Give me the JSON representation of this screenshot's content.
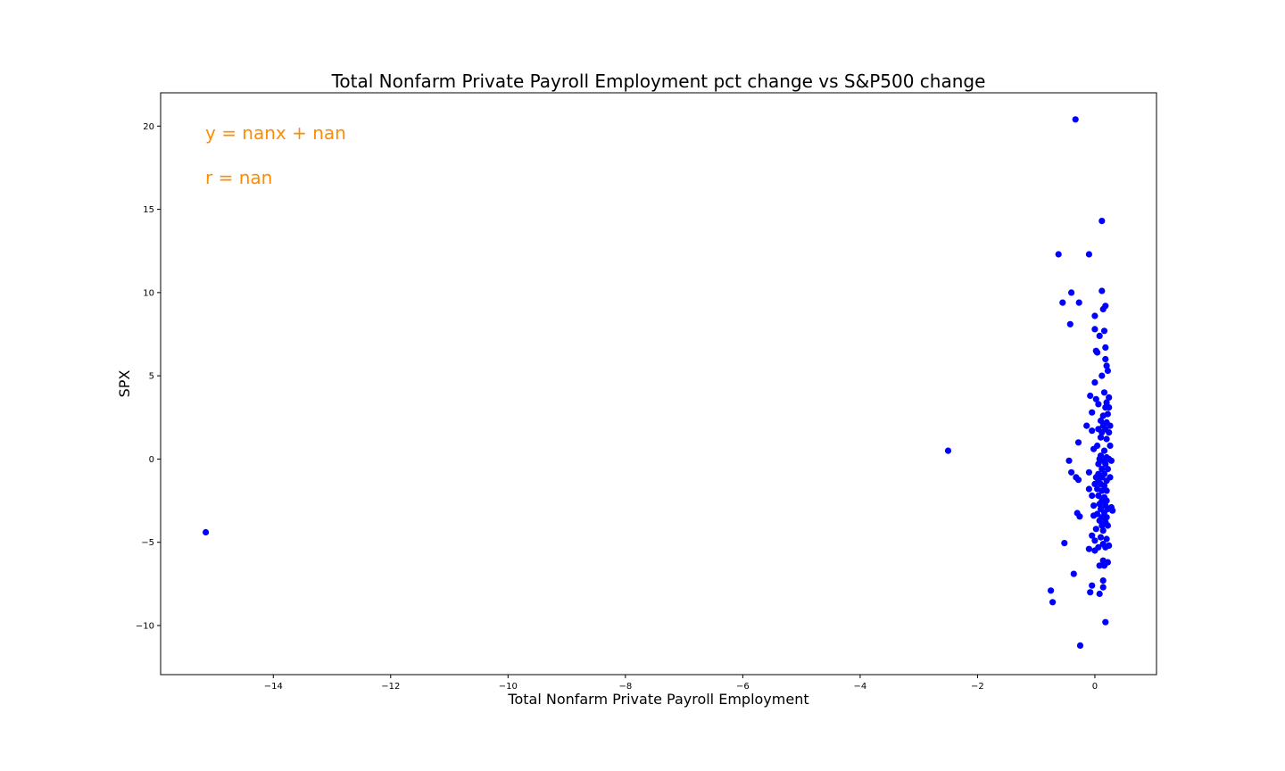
{
  "chart_data": {
    "type": "scatter",
    "title": "Total Nonfarm Private Payroll Employment pct change vs S&P500 change",
    "xlabel": "Total Nonfarm Private Payroll Employment",
    "ylabel": "SPX",
    "xlim": [
      -15.92,
      1.05
    ],
    "ylim": [
      -12.95,
      22
    ],
    "x_ticks": [
      -14,
      -12,
      -10,
      -8,
      -6,
      -4,
      -2,
      0
    ],
    "x_tick_labels": [
      "−14",
      "−12",
      "−10",
      "−8",
      "−6",
      "−4",
      "−2",
      "0"
    ],
    "y_ticks": [
      -10,
      -5,
      0,
      5,
      10,
      15,
      20
    ],
    "y_tick_labels": [
      "−10",
      "−5",
      "0",
      "5",
      "10",
      "15",
      "20"
    ],
    "grid": false,
    "marker_color": "#0000ff",
    "annotation_color": "#ff8c00",
    "annotations": [
      {
        "text": "y = nanx + nan",
        "position": "top-left"
      },
      {
        "text": "r = nan",
        "position": "top-left"
      }
    ],
    "points": [
      {
        "x": -15.15,
        "y": -4.4
      },
      {
        "x": -2.5,
        "y": 0.5
      },
      {
        "x": -0.33,
        "y": 20.4
      },
      {
        "x": 0.12,
        "y": 14.3
      },
      {
        "x": -0.62,
        "y": 12.3
      },
      {
        "x": -0.1,
        "y": 12.3
      },
      {
        "x": 0.12,
        "y": 10.1
      },
      {
        "x": -0.4,
        "y": 10.0
      },
      {
        "x": -0.55,
        "y": 9.4
      },
      {
        "x": -0.27,
        "y": 9.4
      },
      {
        "x": 0.18,
        "y": 9.2
      },
      {
        "x": 0.14,
        "y": 9.0
      },
      {
        "x": 0.0,
        "y": 8.6
      },
      {
        "x": -0.42,
        "y": 8.1
      },
      {
        "x": 0.0,
        "y": 7.8
      },
      {
        "x": 0.16,
        "y": 7.7
      },
      {
        "x": 0.08,
        "y": 7.4
      },
      {
        "x": 0.18,
        "y": 6.7
      },
      {
        "x": 0.02,
        "y": 6.5
      },
      {
        "x": 0.04,
        "y": 6.4
      },
      {
        "x": 0.18,
        "y": 6.0
      },
      {
        "x": 0.2,
        "y": 5.6
      },
      {
        "x": 0.22,
        "y": 5.3
      },
      {
        "x": 0.12,
        "y": 5.0
      },
      {
        "x": 0.0,
        "y": 4.6
      },
      {
        "x": 0.16,
        "y": 4.0
      },
      {
        "x": -0.08,
        "y": 3.8
      },
      {
        "x": 0.24,
        "y": 3.7
      },
      {
        "x": 0.02,
        "y": 3.6
      },
      {
        "x": 0.2,
        "y": 3.4
      },
      {
        "x": 0.06,
        "y": 3.3
      },
      {
        "x": 0.18,
        "y": 3.1
      },
      {
        "x": 0.24,
        "y": 3.1
      },
      {
        "x": -0.05,
        "y": 2.8
      },
      {
        "x": 0.14,
        "y": 2.6
      },
      {
        "x": 0.22,
        "y": 2.7
      },
      {
        "x": 0.1,
        "y": 2.3
      },
      {
        "x": 0.2,
        "y": 2.2
      },
      {
        "x": -0.14,
        "y": 2.0
      },
      {
        "x": 0.14,
        "y": 2.0
      },
      {
        "x": 0.26,
        "y": 2.0
      },
      {
        "x": 0.06,
        "y": 1.8
      },
      {
        "x": 0.18,
        "y": 1.8
      },
      {
        "x": -0.05,
        "y": 1.7
      },
      {
        "x": 0.12,
        "y": 1.6
      },
      {
        "x": 0.24,
        "y": 1.6
      },
      {
        "x": 0.1,
        "y": 1.3
      },
      {
        "x": 0.2,
        "y": 1.2
      },
      {
        "x": -0.28,
        "y": 1.0
      },
      {
        "x": 0.04,
        "y": 0.8
      },
      {
        "x": 0.26,
        "y": 0.8
      },
      {
        "x": -0.02,
        "y": 0.6
      },
      {
        "x": 0.16,
        "y": 0.5
      },
      {
        "x": 0.1,
        "y": 0.2
      },
      {
        "x": 0.2,
        "y": 0.1
      },
      {
        "x": -0.44,
        "y": -0.1
      },
      {
        "x": 0.08,
        "y": 0.0
      },
      {
        "x": 0.14,
        "y": -0.1
      },
      {
        "x": 0.24,
        "y": 0.0
      },
      {
        "x": 0.28,
        "y": -0.1
      },
      {
        "x": 0.06,
        "y": -0.3
      },
      {
        "x": 0.18,
        "y": -0.3
      },
      {
        "x": 0.12,
        "y": -0.6
      },
      {
        "x": 0.22,
        "y": -0.6
      },
      {
        "x": -0.4,
        "y": -0.8
      },
      {
        "x": -0.1,
        "y": -0.8
      },
      {
        "x": 0.06,
        "y": -0.9
      },
      {
        "x": 0.16,
        "y": -0.9
      },
      {
        "x": -0.32,
        "y": -1.1
      },
      {
        "x": 0.02,
        "y": -1.1
      },
      {
        "x": 0.12,
        "y": -1.1
      },
      {
        "x": 0.26,
        "y": -1.1
      },
      {
        "x": -0.28,
        "y": -1.25
      },
      {
        "x": 0.06,
        "y": -1.3
      },
      {
        "x": 0.2,
        "y": -1.3
      },
      {
        "x": 0.0,
        "y": -1.5
      },
      {
        "x": 0.1,
        "y": -1.5
      },
      {
        "x": 0.16,
        "y": -1.6
      },
      {
        "x": -0.1,
        "y": -1.8
      },
      {
        "x": 0.04,
        "y": -1.8
      },
      {
        "x": 0.12,
        "y": -1.9
      },
      {
        "x": 0.2,
        "y": -1.9
      },
      {
        "x": -0.05,
        "y": -2.2
      },
      {
        "x": 0.06,
        "y": -2.2
      },
      {
        "x": 0.16,
        "y": -2.3
      },
      {
        "x": 0.12,
        "y": -2.5
      },
      {
        "x": 0.2,
        "y": -2.5
      },
      {
        "x": -0.02,
        "y": -2.8
      },
      {
        "x": 0.08,
        "y": -2.7
      },
      {
        "x": 0.18,
        "y": -2.8
      },
      {
        "x": 0.28,
        "y": -2.9
      },
      {
        "x": 0.1,
        "y": -3.0
      },
      {
        "x": 0.22,
        "y": -3.0
      },
      {
        "x": 0.3,
        "y": -3.1
      },
      {
        "x": -0.3,
        "y": -3.25
      },
      {
        "x": 0.04,
        "y": -3.3
      },
      {
        "x": 0.16,
        "y": -3.2
      },
      {
        "x": -0.02,
        "y": -3.4
      },
      {
        "x": 0.12,
        "y": -3.5
      },
      {
        "x": 0.2,
        "y": -3.5
      },
      {
        "x": -0.26,
        "y": -3.45
      },
      {
        "x": 0.08,
        "y": -3.7
      },
      {
        "x": 0.18,
        "y": -3.8
      },
      {
        "x": 0.12,
        "y": -4.0
      },
      {
        "x": 0.22,
        "y": -4.0
      },
      {
        "x": 0.02,
        "y": -4.2
      },
      {
        "x": 0.14,
        "y": -4.3
      },
      {
        "x": -0.05,
        "y": -4.6
      },
      {
        "x": 0.1,
        "y": -4.7
      },
      {
        "x": 0.2,
        "y": -4.8
      },
      {
        "x": 0.0,
        "y": -4.9
      },
      {
        "x": -0.52,
        "y": -5.05
      },
      {
        "x": 0.14,
        "y": -5.1
      },
      {
        "x": 0.24,
        "y": -5.2
      },
      {
        "x": 0.06,
        "y": -5.3
      },
      {
        "x": -0.1,
        "y": -5.4
      },
      {
        "x": 0.0,
        "y": -5.5
      },
      {
        "x": 0.18,
        "y": -5.3
      },
      {
        "x": 0.14,
        "y": -6.1
      },
      {
        "x": 0.22,
        "y": -6.2
      },
      {
        "x": 0.08,
        "y": -6.4
      },
      {
        "x": 0.16,
        "y": -6.4
      },
      {
        "x": -0.36,
        "y": -6.9
      },
      {
        "x": 0.14,
        "y": -7.3
      },
      {
        "x": -0.05,
        "y": -7.6
      },
      {
        "x": 0.14,
        "y": -7.7
      },
      {
        "x": -0.75,
        "y": -7.9
      },
      {
        "x": -0.08,
        "y": -8.0
      },
      {
        "x": 0.08,
        "y": -8.1
      },
      {
        "x": -0.72,
        "y": -8.6
      },
      {
        "x": 0.18,
        "y": -9.8
      },
      {
        "x": -0.25,
        "y": -11.2
      }
    ]
  }
}
